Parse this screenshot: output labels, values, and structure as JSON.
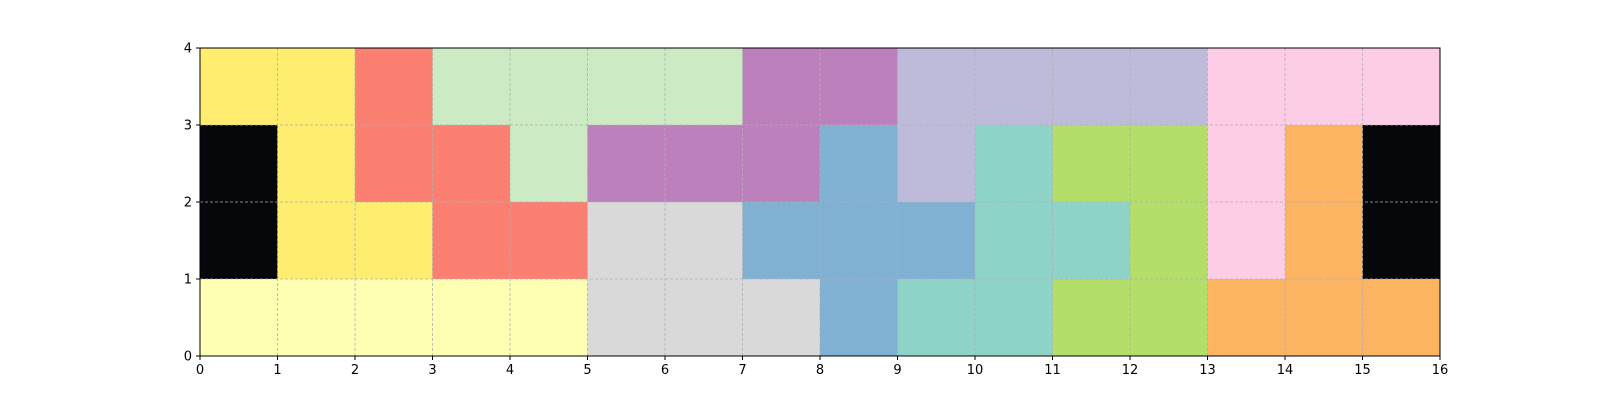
{
  "chart_data": {
    "type": "heatmap",
    "title": "",
    "xlabel": "",
    "ylabel": "",
    "xlim": [
      0,
      16
    ],
    "ylim": [
      0,
      4
    ],
    "grid": true,
    "x_ticks": [
      "0",
      "1",
      "2",
      "3",
      "4",
      "5",
      "6",
      "7",
      "8",
      "9",
      "10",
      "11",
      "12",
      "13",
      "14",
      "15",
      "16"
    ],
    "y_ticks": [
      "0",
      "1",
      "2",
      "3",
      "4"
    ],
    "palette": {
      "yellow": "#ffed6f",
      "salmon": "#fb8072",
      "mint": "#ccebc5",
      "purple": "#bc80bd",
      "lavender": "#bebada",
      "pink": "#fccde5",
      "black": "#05070a",
      "blue": "#80b1d3",
      "teal": "#8dd3c7",
      "lime": "#b3de69",
      "orange": "#fdb462",
      "gray": "#d9d9d9",
      "cream": "#ffffb3"
    },
    "cells": [
      [
        "yellow",
        "yellow",
        "salmon",
        "mint",
        "mint",
        "mint",
        "mint",
        "purple",
        "purple",
        "lavender",
        "lavender",
        "lavender",
        "lavender",
        "pink",
        "pink",
        "pink"
      ],
      [
        "black",
        "yellow",
        "salmon",
        "salmon",
        "mint",
        "purple",
        "purple",
        "purple",
        "blue",
        "lavender",
        "teal",
        "lime",
        "lime",
        "pink",
        "orange",
        "black"
      ],
      [
        "black",
        "yellow",
        "yellow",
        "salmon",
        "salmon",
        "gray",
        "gray",
        "blue",
        "blue",
        "blue",
        "teal",
        "teal",
        "lime",
        "pink",
        "orange",
        "black"
      ],
      [
        "cream",
        "cream",
        "cream",
        "cream",
        "cream",
        "gray",
        "gray",
        "gray",
        "blue",
        "teal",
        "teal",
        "lime",
        "lime",
        "orange",
        "orange",
        "orange"
      ]
    ]
  }
}
